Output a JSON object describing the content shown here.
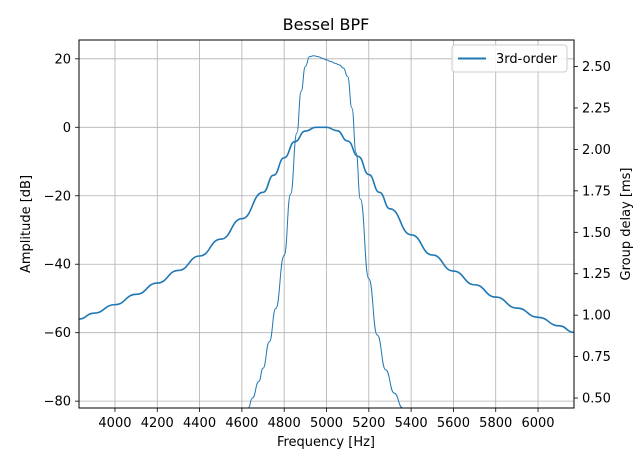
{
  "chart_data": {
    "type": "line",
    "title": "Bessel BPF",
    "xlabel": "Frequency [Hz]",
    "ylabel": "Amplitude [dB]",
    "y2label": "Group delay [ms]",
    "xlim": [
      3830,
      6170
    ],
    "ylim": [
      -82,
      25.5
    ],
    "y2lim": [
      0.44,
      2.66
    ],
    "xticks": [
      4000,
      4200,
      4400,
      4600,
      4800,
      5000,
      5200,
      5400,
      5600,
      5800,
      6000
    ],
    "xtick_labels": [
      "4000",
      "4200",
      "4400",
      "4600",
      "4800",
      "5000",
      "5200",
      "5400",
      "5600",
      "5800",
      "6000"
    ],
    "yticks": [
      -80,
      -60,
      -40,
      -20,
      0,
      20
    ],
    "ytick_labels": [
      "−80",
      "−60",
      "−40",
      "−20",
      "0",
      "20"
    ],
    "y2ticks": [
      0.5,
      0.75,
      1.0,
      1.25,
      1.5,
      1.75,
      2.0,
      2.25,
      2.5
    ],
    "y2tick_labels": [
      "0.50",
      "0.75",
      "1.00",
      "1.25",
      "1.50",
      "1.75",
      "2.00",
      "2.25",
      "2.50"
    ],
    "grid": true,
    "legend_position": "top-right",
    "color": "#1f77b4",
    "series": [
      {
        "name": "3rd-order",
        "axis": "left",
        "x": [
          3830,
          3900,
          4000,
          4100,
          4200,
          4300,
          4400,
          4500,
          4600,
          4700,
          4750,
          4800,
          4850,
          4900,
          4950,
          5000,
          5050,
          5100,
          5150,
          5200,
          5250,
          5300,
          5400,
          5500,
          5600,
          5700,
          5800,
          5900,
          6000,
          6100,
          6170
        ],
        "y": [
          -56,
          -54.3,
          -51.8,
          -48.8,
          -45.5,
          -41.8,
          -37.6,
          -32.7,
          -26.7,
          -19,
          -14,
          -8.9,
          -4.2,
          -1.1,
          0,
          0,
          -1,
          -4,
          -8.5,
          -13.8,
          -19,
          -23.8,
          -31.4,
          -37.3,
          -42,
          -46,
          -49.6,
          -52.8,
          -55.5,
          -58,
          -59.9
        ]
      },
      {
        "name": "",
        "axis": "right",
        "x": [
          4630,
          4650,
          4680,
          4700,
          4730,
          4760,
          4800,
          4830,
          4860,
          4880,
          4900,
          4920,
          4940,
          4960,
          4980,
          5000,
          5020,
          5040,
          5060,
          5080,
          5100,
          5120,
          5140,
          5160,
          5200,
          5240,
          5280,
          5320,
          5360
        ],
        "y": [
          0.44,
          0.5,
          0.6,
          0.68,
          0.84,
          1.04,
          1.36,
          1.73,
          2.1,
          2.35,
          2.5,
          2.56,
          2.565,
          2.56,
          2.55,
          2.54,
          2.53,
          2.52,
          2.51,
          2.49,
          2.44,
          2.25,
          1.98,
          1.7,
          1.22,
          0.88,
          0.67,
          0.53,
          0.44
        ]
      }
    ]
  }
}
